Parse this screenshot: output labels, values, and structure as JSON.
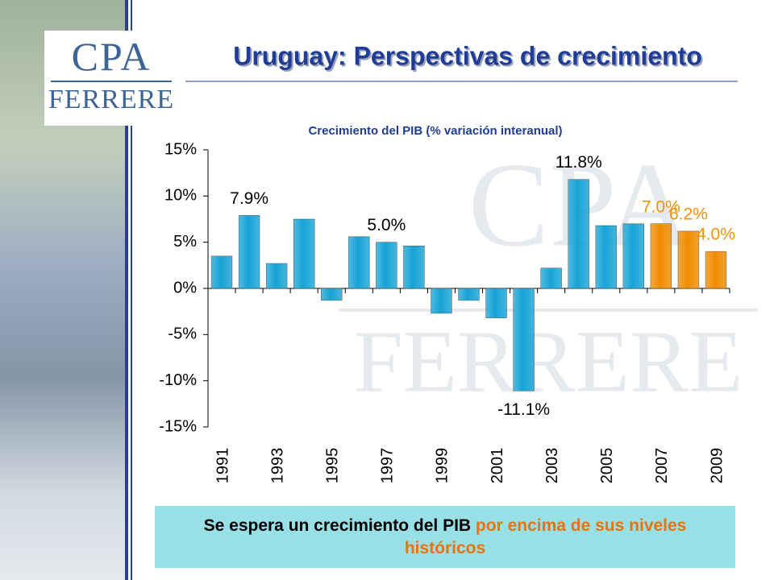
{
  "logo": {
    "top": "CPA",
    "bottom": "FERRERE"
  },
  "message": {
    "part1": "Se espera un crecimiento del PIB ",
    "part2": "por encima de sus niveles históricos"
  },
  "chart_data": {
    "type": "bar",
    "title": "Uruguay: Perspectivas de crecimiento",
    "subtitle": "Crecimiento del PIB (% variación interanual)",
    "categories": [
      "1991",
      null,
      "1993",
      null,
      "1995",
      null,
      "1997",
      null,
      "1999",
      null,
      "2001",
      null,
      "2003",
      null,
      "2005",
      null,
      "2007",
      null,
      "2009"
    ],
    "values": [
      3.5,
      7.9,
      2.7,
      7.5,
      -1.3,
      5.6,
      5.0,
      4.6,
      -2.7,
      -1.3,
      -3.2,
      -11.1,
      2.2,
      11.8,
      6.8,
      7.0,
      7.0,
      6.2,
      4.0
    ],
    "value_labels": [
      null,
      "7.9%",
      null,
      null,
      null,
      null,
      "5.0%",
      null,
      null,
      null,
      null,
      "-11.1%",
      null,
      "11.8%",
      null,
      null,
      "7.0%",
      "6.2%",
      "4.0%"
    ],
    "colors": [
      "#16a3d6",
      "#16a3d6",
      "#16a3d6",
      "#16a3d6",
      "#16a3d6",
      "#16a3d6",
      "#16a3d6",
      "#16a3d6",
      "#16a3d6",
      "#16a3d6",
      "#16a3d6",
      "#16a3d6",
      "#16a3d6",
      "#16a3d6",
      "#16a3d6",
      "#16a3d6",
      "#f08c00",
      "#f08c00",
      "#f08c00"
    ],
    "label_colors": [
      "#000000",
      "#000000",
      "#000000",
      "#000000",
      "#000000",
      "#000000",
      "#000000",
      "#000000",
      "#000000",
      "#000000",
      "#000000",
      "#000000",
      "#000000",
      "#000000",
      "#000000",
      "#000000",
      "#f39200",
      "#f39200",
      "#f39200"
    ],
    "ylim": [
      -15,
      15
    ],
    "yticks": [
      {
        "value": -15,
        "label": "-15%"
      },
      {
        "value": -10,
        "label": "-10%"
      },
      {
        "value": -5,
        "label": "-5%"
      },
      {
        "value": 0,
        "label": "0%"
      },
      {
        "value": 5,
        "label": "5%"
      },
      {
        "value": 10,
        "label": "10%"
      },
      {
        "value": 15,
        "label": "15%"
      }
    ]
  }
}
